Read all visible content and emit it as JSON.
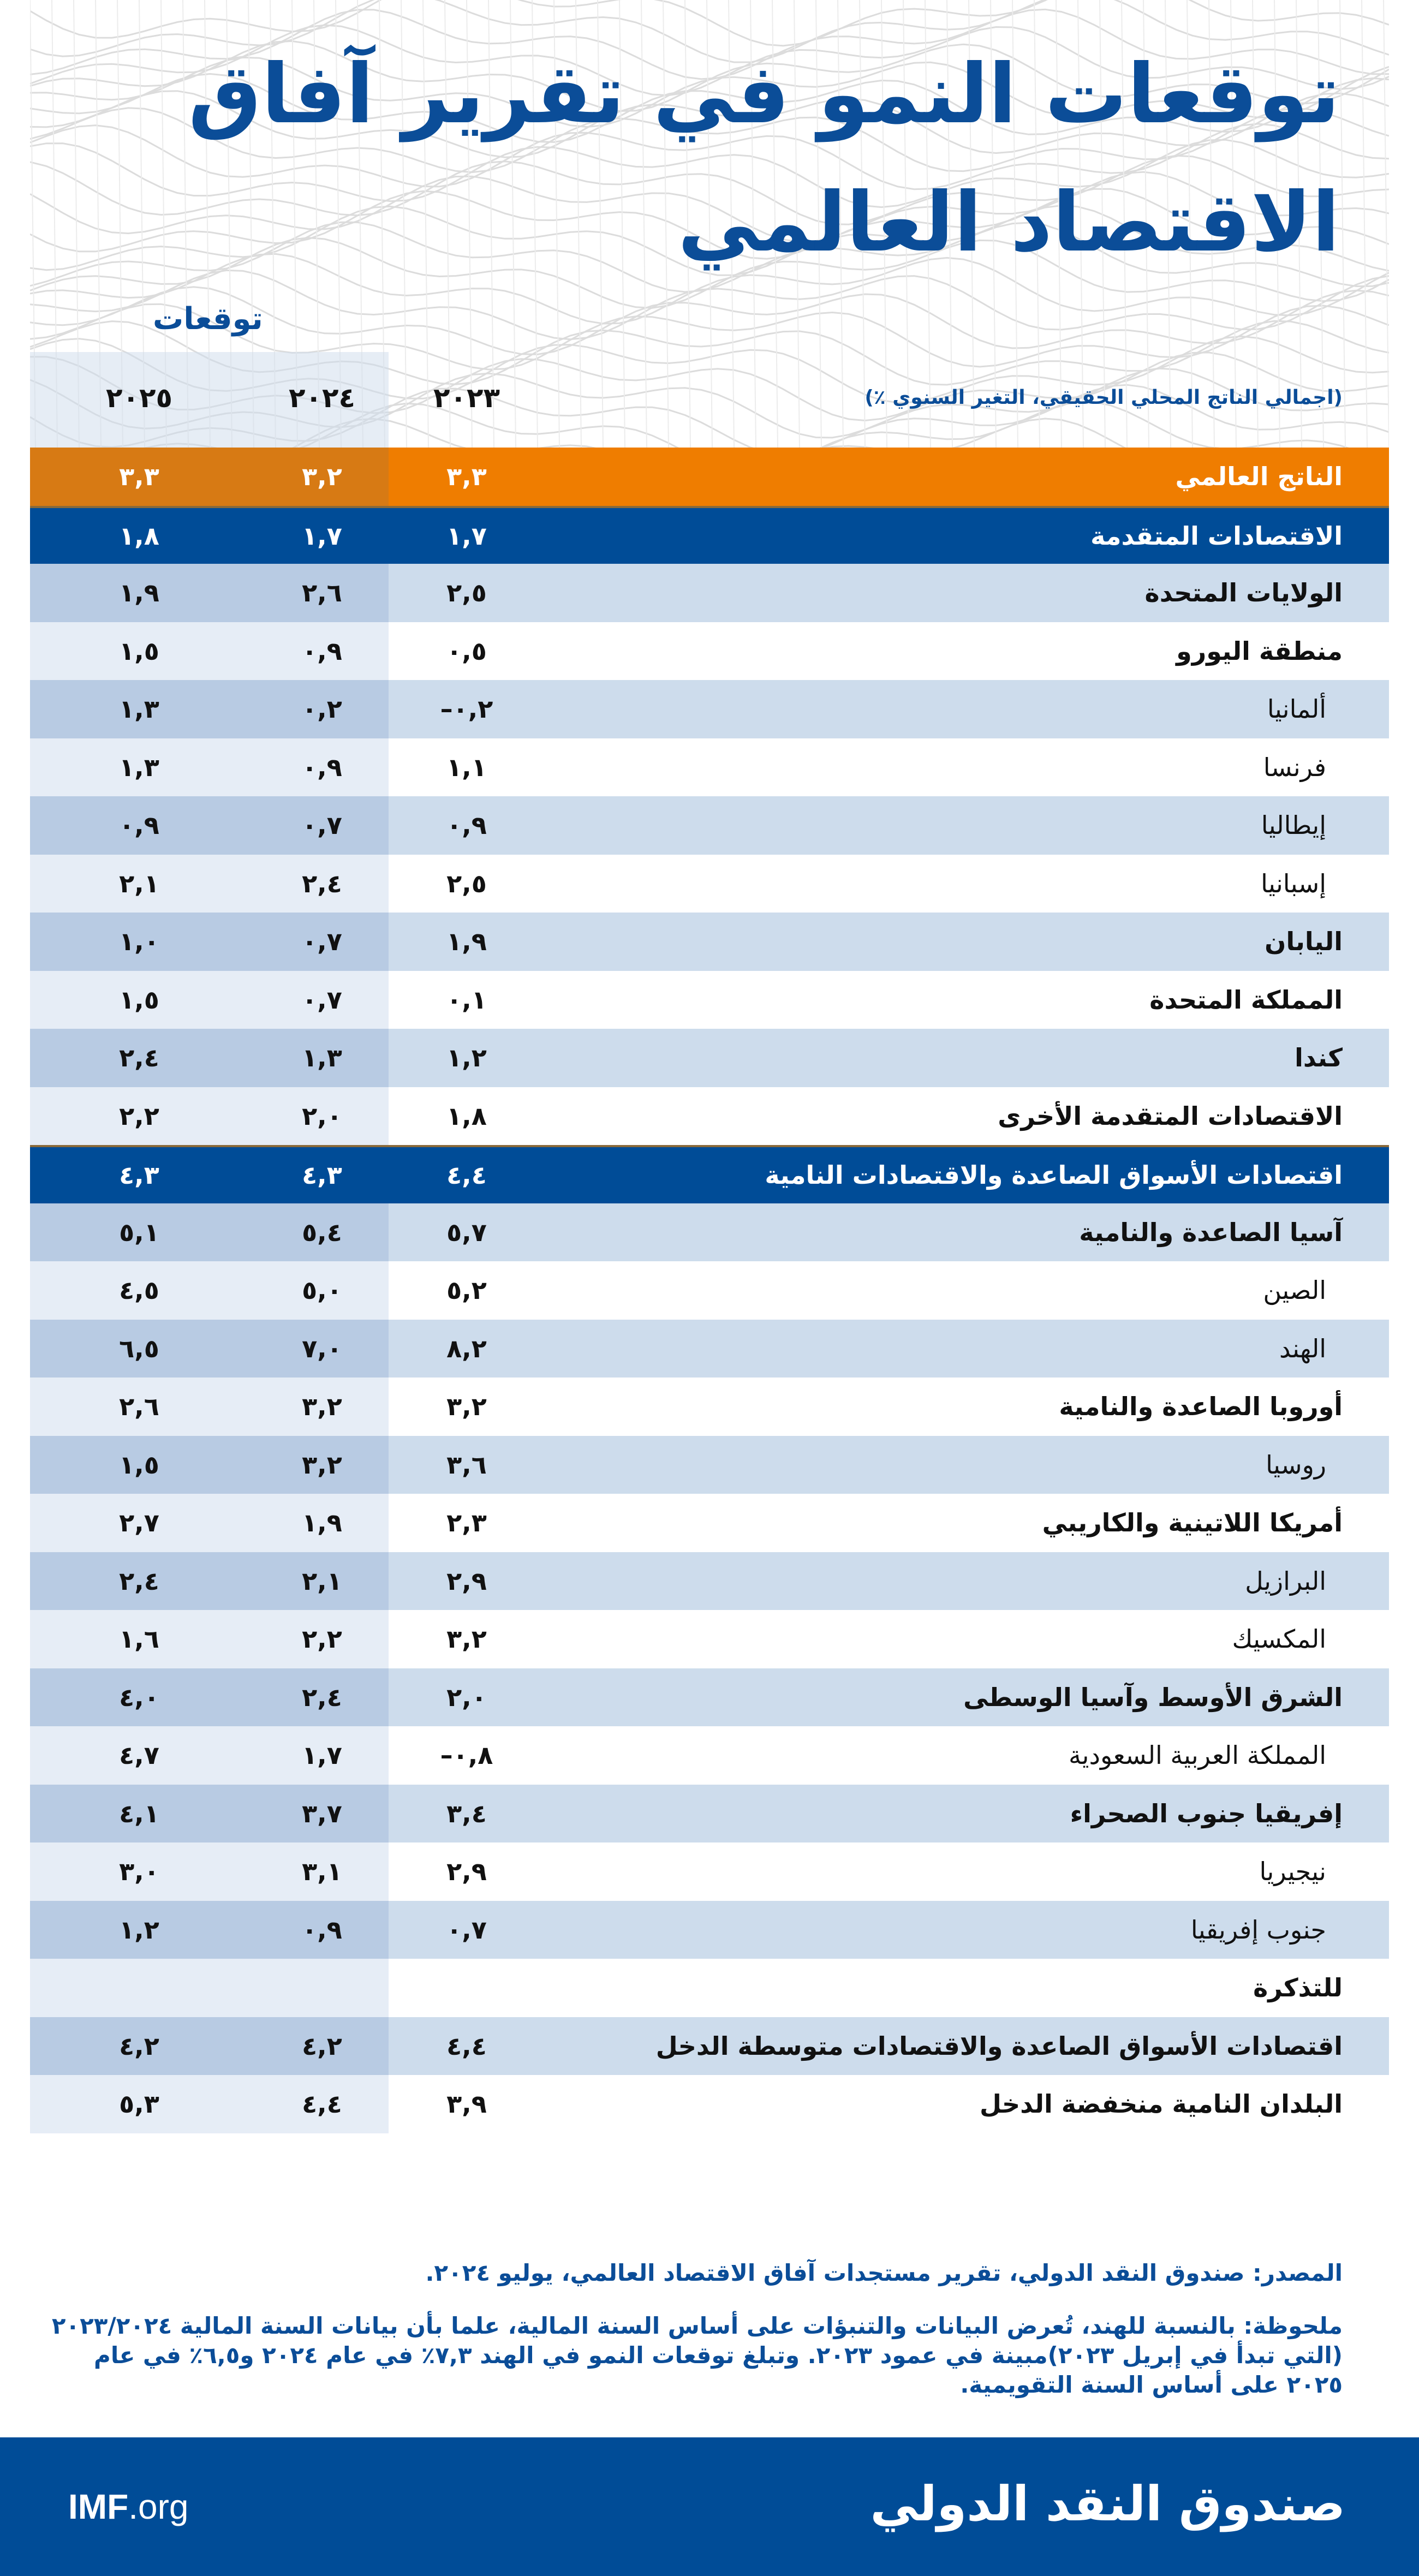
{
  "title": {
    "line1": "توقعات النمو في تقرير آفاق",
    "line2": "الاقتصاد العالمي"
  },
  "header": {
    "forecast_label": "توقعات",
    "unit_label": "(اجمالي الناتج المحلي الحقيقي، التغير السنوي ٪)",
    "years": [
      "٢٠٢٣",
      "٢٠٢٤",
      "٢٠٢٥"
    ]
  },
  "colors": {
    "title": "#0b4d98",
    "world_row": "#ef7d00",
    "group_row": "#004c97",
    "shaded_row": "#cddcec",
    "forecast_shaded": "#b8cbe3"
  },
  "rows": [
    {
      "name": "الناتج العالمي",
      "v": [
        "٣,٣",
        "٣,٢",
        "٣,٣"
      ],
      "style": "world"
    },
    {
      "name": "الاقتصادات المتقدمة",
      "v": [
        "١,٧",
        "١,٧",
        "١,٨"
      ],
      "style": "dark"
    },
    {
      "name": "الولايات المتحدة",
      "v": [
        "٢,٥",
        "٢,٦",
        "١,٩"
      ],
      "style": "shade b"
    },
    {
      "name": "منطقة اليورو",
      "v": [
        "٠,٥",
        "٠,٩",
        "١,٥"
      ],
      "style": "plain b"
    },
    {
      "name": "ألمانيا",
      "v": [
        "–٠,٢",
        "٠,٢",
        "١,٣"
      ],
      "style": "shade ind"
    },
    {
      "name": "فرنسا",
      "v": [
        "١,١",
        "٠,٩",
        "١,٣"
      ],
      "style": "plain ind"
    },
    {
      "name": "إيطاليا",
      "v": [
        "٠,٩",
        "٠,٧",
        "٠,٩"
      ],
      "style": "shade ind"
    },
    {
      "name": "إسبانيا",
      "v": [
        "٢,٥",
        "٢,٤",
        "٢,١"
      ],
      "style": "plain ind"
    },
    {
      "name": "اليابان",
      "v": [
        "١,٩",
        "٠,٧",
        "١,٠"
      ],
      "style": "shade b"
    },
    {
      "name": "المملكة المتحدة",
      "v": [
        "٠,١",
        "٠,٧",
        "١,٥"
      ],
      "style": "plain b"
    },
    {
      "name": "كندا",
      "v": [
        "١,٢",
        "١,٣",
        "٢,٤"
      ],
      "style": "shade b"
    },
    {
      "name": "الاقتصادات المتقدمة الأخرى",
      "v": [
        "١,٨",
        "٢,٠",
        "٢,٢"
      ],
      "style": "plain b"
    },
    {
      "name": "اقتصادات الأسواق الصاعدة والاقتصادات النامية",
      "v": [
        "٤,٤",
        "٤,٣",
        "٤,٣"
      ],
      "style": "dark"
    },
    {
      "name": "آسيا الصاعدة والنامية",
      "v": [
        "٥,٧",
        "٥,٤",
        "٥,١"
      ],
      "style": "shade b"
    },
    {
      "name": "الصين",
      "v": [
        "٥,٢",
        "٥,٠",
        "٤,٥"
      ],
      "style": "plain ind"
    },
    {
      "name": "الهند",
      "v": [
        "٨,٢",
        "٧,٠",
        "٦,٥"
      ],
      "style": "shade ind"
    },
    {
      "name": "أوروبا الصاعدة والنامية",
      "v": [
        "٣,٢",
        "٣,٢",
        "٢,٦"
      ],
      "style": "plain b"
    },
    {
      "name": "روسيا",
      "v": [
        "٣,٦",
        "٣,٢",
        "١,٥"
      ],
      "style": "shade ind"
    },
    {
      "name": "أمريكا اللاتينية والكاريبي",
      "v": [
        "٢,٣",
        "١,٩",
        "٢,٧"
      ],
      "style": "plain b"
    },
    {
      "name": "البرازيل",
      "v": [
        "٢,٩",
        "٢,١",
        "٢,٤"
      ],
      "style": "shade ind"
    },
    {
      "name": "المكسيك",
      "v": [
        "٣,٢",
        "٢,٢",
        "١,٦"
      ],
      "style": "plain ind"
    },
    {
      "name": "الشرق الأوسط وآسيا الوسطى",
      "v": [
        "٢,٠",
        "٢,٤",
        "٤,٠"
      ],
      "style": "shade b"
    },
    {
      "name": "المملكة العربية السعودية",
      "v": [
        "–٠,٨",
        "١,٧",
        "٤,٧"
      ],
      "style": "plain ind"
    },
    {
      "name": "إفريقيا جنوب الصحراء",
      "v": [
        "٣,٤",
        "٣,٧",
        "٤,١"
      ],
      "style": "shade b"
    },
    {
      "name": "نيجيريا",
      "v": [
        "٢,٩",
        "٣,١",
        "٣,٠"
      ],
      "style": "plain ind"
    },
    {
      "name": "جنوب إفريقيا",
      "v": [
        "٠,٧",
        "٠,٩",
        "١,٢"
      ],
      "style": "shade ind"
    },
    {
      "name": "للتذكرة",
      "v": [
        "",
        "",
        ""
      ],
      "style": "plain b"
    },
    {
      "name": "اقتصادات الأسواق الصاعدة والاقتصادات متوسطة الدخل",
      "v": [
        "٤,٤",
        "٤,٢",
        "٤,٢"
      ],
      "style": "shade b"
    },
    {
      "name": "البلدان النامية منخفضة الدخل",
      "v": [
        "٣,٩",
        "٤,٤",
        "٥,٣"
      ],
      "style": "plain b"
    }
  ],
  "footnotes": {
    "source": "المصدر: صندوق النقد الدولي، تقرير مستجدات آفاق الاقتصاد العالمي، يوليو ٢٠٢٤.",
    "note": "ملحوظة: بالنسبة للهند، تُعرض البيانات والتنبؤات على أساس السنة المالية، علما بأن بيانات السنة المالية ٢٠٢٣/٢٠٢٤ (التي تبدأ في إبريل ٢٠٢٣)مبينة في عمود ٢٠٢٣. وتبلغ توقعات النمو في الهند ٧,٣٪ في عام ٢٠٢٤ و٦,٥٪ في عام ٢٠٢٥ على أساس السنة التقويمية."
  },
  "footer": {
    "site_bold": "IMF",
    "site_rest": ".org",
    "org_name": "صندوق النقد الدولي"
  }
}
